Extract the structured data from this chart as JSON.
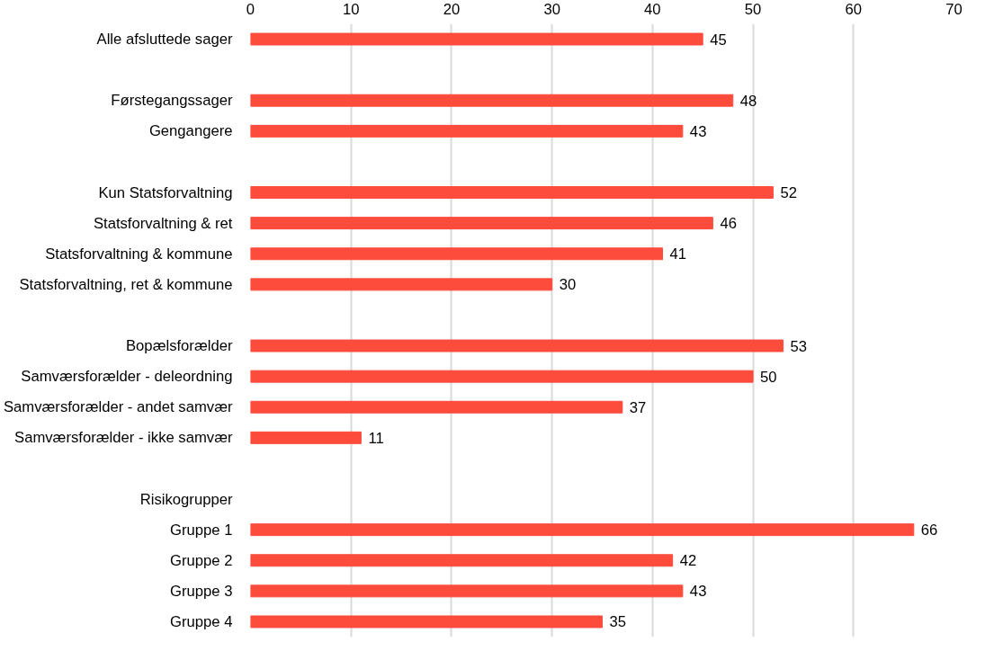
{
  "chart_data": {
    "type": "bar",
    "orientation": "horizontal",
    "categories": [
      "Alle afsluttede sager",
      null,
      "Førstegangssager",
      "Gengangere",
      null,
      "Kun Statsforvaltning",
      "Statsforvaltning & ret",
      "Statsforvaltning & kommune",
      "Statsforvaltning, ret & kommune",
      null,
      "Bopælsforælder",
      "Samværsforælder - deleordning",
      "Samværsforælder - andet samvær",
      "Samværsforælder - ikke samvær",
      null,
      "Risikogrupper",
      "Gruppe 1",
      "Gruppe 2",
      "Gruppe 3",
      "Gruppe 4"
    ],
    "values": [
      45,
      null,
      48,
      43,
      null,
      52,
      46,
      41,
      30,
      null,
      53,
      50,
      37,
      11,
      null,
      null,
      66,
      42,
      43,
      35
    ],
    "color": "#fd4b3c",
    "xlim": [
      0,
      70
    ],
    "xticks": [
      0,
      10,
      20,
      30,
      40,
      50,
      60,
      70
    ],
    "grid": "x",
    "data_labels": true
  }
}
